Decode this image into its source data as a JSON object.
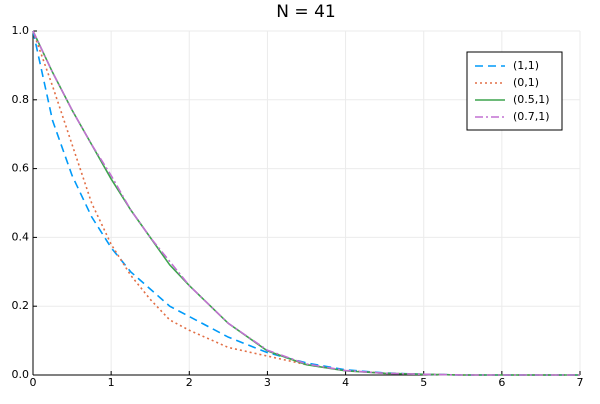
{
  "chart_data": {
    "type": "line",
    "title": "N = 41",
    "x": [
      0,
      0.25,
      0.5,
      0.75,
      1,
      1.25,
      1.5,
      1.75,
      2,
      2.5,
      3,
      3.5,
      4,
      4.5,
      5,
      5.5,
      6,
      6.5,
      7
    ],
    "series": [
      {
        "name": "(1,1)",
        "color": "#009af9",
        "dash": "8,5",
        "values": [
          1,
          0.74,
          0.58,
          0.46,
          0.37,
          0.3,
          0.25,
          0.2,
          0.17,
          0.11,
          0.065,
          0.035,
          0.015,
          0.006,
          0.002,
          0,
          0,
          0,
          0
        ]
      },
      {
        "name": "(0,1)",
        "color": "#e26f46",
        "dash": "2,3",
        "values": [
          1,
          0.84,
          0.67,
          0.5,
          0.38,
          0.29,
          0.22,
          0.16,
          0.13,
          0.08,
          0.055,
          0.03,
          0.013,
          0.005,
          0.002,
          0,
          0,
          0,
          0
        ]
      },
      {
        "name": "(0.5,1)",
        "color": "#3da44d",
        "dash": "none",
        "values": [
          1,
          0.88,
          0.77,
          0.67,
          0.57,
          0.48,
          0.4,
          0.32,
          0.26,
          0.15,
          0.07,
          0.03,
          0.012,
          0.005,
          0.002,
          0,
          0,
          0,
          0
        ]
      },
      {
        "name": "(0.7,1)",
        "color": "#c271d2",
        "dash": "8,3,2,3",
        "values": [
          1,
          0.88,
          0.77,
          0.67,
          0.58,
          0.48,
          0.4,
          0.33,
          0.26,
          0.15,
          0.072,
          0.032,
          0.013,
          0.005,
          0.002,
          0,
          0,
          0,
          0
        ]
      }
    ],
    "xlim": [
      0,
      7
    ],
    "xticks": [
      0,
      1,
      2,
      3,
      4,
      5,
      6,
      7
    ],
    "ylim": [
      0,
      1
    ],
    "yticks": [
      {
        "value": 0,
        "label": "0.0"
      },
      0.2,
      0.4,
      0.6,
      0.8,
      {
        "value": 1,
        "label": "1.0"
      }
    ],
    "grid": true,
    "legend": "top-right"
  }
}
